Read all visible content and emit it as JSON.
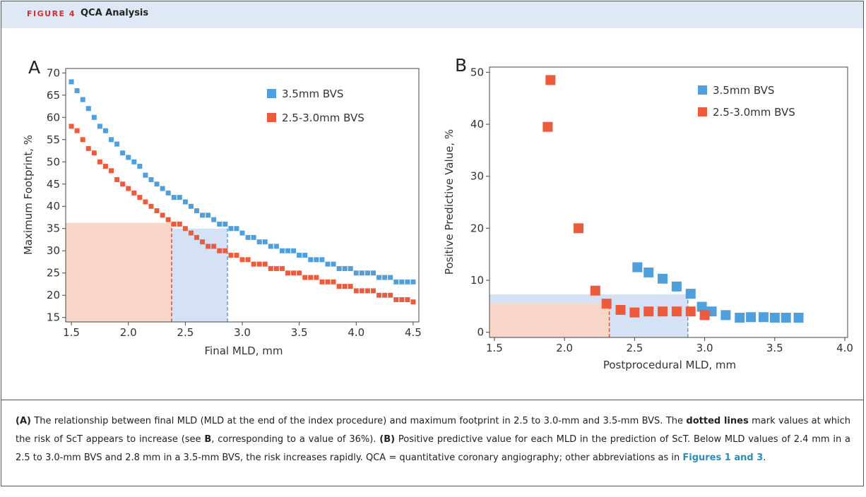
{
  "header": {
    "figure": "FIGURE 4",
    "title": "QCA Analysis"
  },
  "caption": [
    {
      "text": "(A)",
      "style": "bold"
    },
    {
      "text": " The relationship between final MLD (MLD at the end of the index procedure) and maximum footprint in 2.5 to 3.0-mm and 3.5-mm BVS. The ",
      "style": "normal"
    },
    {
      "text": "dotted lines",
      "style": "bold"
    },
    {
      "text": " mark values at which the risk of ScT appears to increase (see ",
      "style": "normal"
    },
    {
      "text": "B",
      "style": "bold"
    },
    {
      "text": ", corresponding to a value of 36%). ",
      "style": "normal"
    },
    {
      "text": "(B)",
      "style": "bold"
    },
    {
      "text": " Positive predictive value for each MLD in the prediction of ScT. Below MLD values of 2.4 mm in a 2.5 to 3.0-mm BVS and 2.8 mm in a 3.5-mm BVS, the risk increases rapidly. QCA = quantitative coronary angiography; other abbreviations as in ",
      "style": "normal"
    },
    {
      "text": "Figures 1 and 3",
      "style": "link"
    },
    {
      "text": ".",
      "style": "normal"
    }
  ],
  "chart_data": [
    {
      "type": "scatter",
      "panel": "A",
      "xlabel": "Final MLD, mm",
      "ylabel": "Maximum Footprint, %",
      "xlim": [
        1.45,
        4.55
      ],
      "ylim": [
        14,
        71
      ],
      "xticks": [
        1.5,
        {
          "value": 2,
          "label": "2.0"
        },
        2.5,
        {
          "value": 3,
          "label": "3.0"
        },
        3.5,
        {
          "value": 4,
          "label": "4.0"
        },
        4.5
      ],
      "yticks": [
        15,
        20,
        25,
        30,
        35,
        40,
        45,
        50,
        55,
        60,
        65,
        70
      ],
      "regions": [
        {
          "x0": 1.45,
          "x1": 2.38,
          "ytop": 36.3,
          "color": "#f9d6ca",
          "line_color": "#e8503a"
        },
        {
          "x0": 2.38,
          "x1": 2.87,
          "ytop": 35,
          "color": "#d5e2f5",
          "line_color": "#5a9fd6"
        }
      ],
      "series": [
        {
          "name": "3.5mm BVS",
          "color": "#4e9fdb",
          "x": [
            1.5,
            1.55,
            1.6,
            1.65,
            1.7,
            1.75,
            1.8,
            1.85,
            1.9,
            1.95,
            2.0,
            2.05,
            2.1,
            2.15,
            2.2,
            2.25,
            2.3,
            2.35,
            2.4,
            2.45,
            2.5,
            2.55,
            2.6,
            2.65,
            2.7,
            2.75,
            2.8,
            2.85,
            2.9,
            2.95,
            3.0,
            3.05,
            3.1,
            3.15,
            3.2,
            3.25,
            3.3,
            3.35,
            3.4,
            3.45,
            3.5,
            3.55,
            3.6,
            3.65,
            3.7,
            3.75,
            3.8,
            3.85,
            3.9,
            3.95,
            4.0,
            4.05,
            4.1,
            4.15,
            4.2,
            4.25,
            4.3,
            4.35,
            4.4,
            4.45,
            4.5
          ],
          "values": [
            68,
            66,
            64,
            62,
            60,
            58,
            57,
            55,
            54,
            52,
            51,
            50,
            49,
            47,
            46,
            45,
            44,
            43,
            42,
            42,
            41,
            40,
            39,
            38,
            38,
            37,
            36,
            36,
            35,
            35,
            34,
            33,
            33,
            32,
            32,
            31,
            31,
            30,
            30,
            30,
            29,
            29,
            28,
            28,
            28,
            27,
            27,
            26,
            26,
            26,
            25,
            25,
            25,
            25,
            24,
            24,
            24,
            23,
            23,
            23,
            23
          ]
        },
        {
          "name": "2.5-3.0mm BVS",
          "color": "#ee5a3c",
          "x": [
            1.5,
            1.55,
            1.6,
            1.65,
            1.7,
            1.75,
            1.8,
            1.85,
            1.9,
            1.95,
            2.0,
            2.05,
            2.1,
            2.15,
            2.2,
            2.25,
            2.3,
            2.35,
            2.4,
            2.45,
            2.5,
            2.55,
            2.6,
            2.65,
            2.7,
            2.75,
            2.8,
            2.85,
            2.9,
            2.95,
            3.0,
            3.05,
            3.1,
            3.15,
            3.2,
            3.25,
            3.3,
            3.35,
            3.4,
            3.45,
            3.5,
            3.55,
            3.6,
            3.65,
            3.7,
            3.75,
            3.8,
            3.85,
            3.9,
            3.95,
            4.0,
            4.05,
            4.1,
            4.15,
            4.2,
            4.25,
            4.3,
            4.35,
            4.4,
            4.45,
            4.5
          ],
          "values": [
            58,
            57,
            55,
            53,
            52,
            50,
            49,
            48,
            46,
            45,
            44,
            43,
            42,
            41,
            40,
            39,
            38,
            37,
            36,
            36,
            35,
            34,
            33,
            32,
            31,
            31,
            30,
            30,
            29,
            29,
            28,
            28,
            27,
            27,
            27,
            26,
            26,
            26,
            25,
            25,
            25,
            24,
            24,
            24,
            23,
            23,
            23,
            22,
            22,
            22,
            21,
            21,
            21,
            21,
            20,
            20,
            20,
            19,
            19,
            19,
            18.5
          ]
        }
      ]
    },
    {
      "type": "scatter",
      "panel": "B",
      "xlabel": "Postprocedural MLD, mm",
      "ylabel": "Positive Predictive Value, %",
      "xlim": [
        1.465,
        4.02
      ],
      "ylim": [
        -1,
        51
      ],
      "xticks": [
        1.5,
        {
          "value": 2,
          "label": "2.0"
        },
        2.5,
        {
          "value": 3,
          "label": "3.0"
        },
        3.5,
        {
          "value": 4,
          "label": "4.0"
        }
      ],
      "yticks": [
        0,
        10,
        20,
        30,
        40,
        50
      ],
      "regions": [
        {
          "x0": 1.465,
          "x1": 2.88,
          "ytop": 7.3,
          "color": "#d5e2f5",
          "line_color": "#5a9fd6"
        },
        {
          "x0": 1.465,
          "x1": 2.32,
          "ytop": 5.5,
          "color": "#f9d6ca",
          "line_color": "#e8503a"
        }
      ],
      "series": [
        {
          "name": "3.5mm BVS",
          "color": "#4e9fdb",
          "x": [
            2.52,
            2.6,
            2.7,
            2.8,
            2.9,
            2.98,
            3.05,
            3.15,
            3.25,
            3.33,
            3.42,
            3.5,
            3.58,
            3.67
          ],
          "values": [
            12.5,
            11.5,
            10.3,
            8.8,
            7.4,
            4.9,
            4,
            3.3,
            2.8,
            2.9,
            2.9,
            2.8,
            2.8,
            2.8
          ]
        },
        {
          "name": "2.5-3.0mm BVS",
          "color": "#ee5a3c",
          "x": [
            1.88,
            1.9,
            2.1,
            2.22,
            2.3,
            2.4,
            2.5,
            2.6,
            2.7,
            2.8,
            2.9,
            3.0
          ],
          "values": [
            39.5,
            48.5,
            20,
            8,
            5.5,
            4.3,
            3.8,
            4,
            4,
            4,
            4,
            3.3
          ]
        }
      ]
    }
  ]
}
